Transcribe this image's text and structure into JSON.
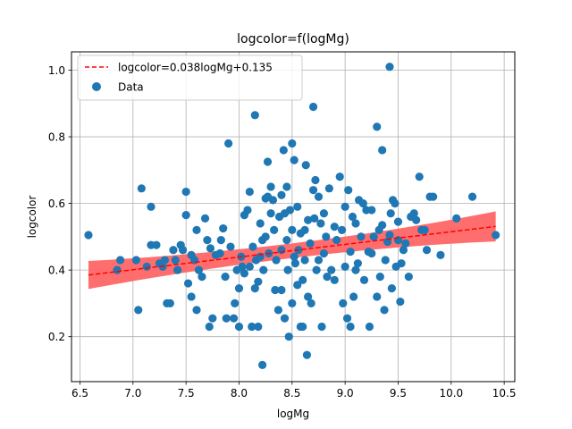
{
  "chart_data": {
    "type": "scatter",
    "title": "logcolor=f(logMg)",
    "xlabel": "logMg",
    "ylabel": "logcolor",
    "xlim": [
      6.42,
      10.6
    ],
    "ylim": [
      0.065,
      1.055
    ],
    "xticks": [
      "6.5",
      "7.0",
      "7.5",
      "8.0",
      "8.5",
      "9.0",
      "9.5",
      "10.0",
      "10.5"
    ],
    "yticks": [
      "0.2",
      "0.4",
      "0.6",
      "0.8",
      "1.0"
    ],
    "grid": true,
    "legend_position": "top-left",
    "fit": {
      "label": "logcolor=0.038logMg+0.135",
      "slope": 0.038,
      "intercept": 0.135,
      "x_range": [
        6.58,
        10.42
      ],
      "band_halfwidth_start": 0.042,
      "band_halfwidth_end": 0.045,
      "band_center_narrow": 0.022,
      "color": "#ff0000",
      "band_color": "#ff6666"
    },
    "series": [
      {
        "name": "Data",
        "color": "#1f77b4",
        "points": [
          [
            6.58,
            0.505
          ],
          [
            6.85,
            0.4
          ],
          [
            6.88,
            0.43
          ],
          [
            7.03,
            0.43
          ],
          [
            7.05,
            0.28
          ],
          [
            7.08,
            0.645
          ],
          [
            7.13,
            0.41
          ],
          [
            7.17,
            0.59
          ],
          [
            7.17,
            0.475
          ],
          [
            7.22,
            0.475
          ],
          [
            7.25,
            0.42
          ],
          [
            7.28,
            0.41
          ],
          [
            7.3,
            0.43
          ],
          [
            7.32,
            0.3
          ],
          [
            7.35,
            0.3
          ],
          [
            7.38,
            0.46
          ],
          [
            7.4,
            0.43
          ],
          [
            7.42,
            0.4
          ],
          [
            7.45,
            0.475
          ],
          [
            7.47,
            0.46
          ],
          [
            7.5,
            0.635
          ],
          [
            7.5,
            0.565
          ],
          [
            7.52,
            0.36
          ],
          [
            7.55,
            0.32
          ],
          [
            7.55,
            0.445
          ],
          [
            7.58,
            0.43
          ],
          [
            7.6,
            0.52
          ],
          [
            7.6,
            0.28
          ],
          [
            7.62,
            0.4
          ],
          [
            7.65,
            0.38
          ],
          [
            7.68,
            0.555
          ],
          [
            7.7,
            0.49
          ],
          [
            7.72,
            0.23
          ],
          [
            7.73,
            0.465
          ],
          [
            7.75,
            0.255
          ],
          [
            7.78,
            0.445
          ],
          [
            7.82,
            0.45
          ],
          [
            7.83,
            0.49
          ],
          [
            7.85,
            0.525
          ],
          [
            7.87,
            0.38
          ],
          [
            7.88,
            0.255
          ],
          [
            7.9,
            0.78
          ],
          [
            7.92,
            0.47
          ],
          [
            7.95,
            0.255
          ],
          [
            7.96,
            0.3
          ],
          [
            7.98,
            0.4
          ],
          [
            8.0,
            0.23
          ],
          [
            8.0,
            0.345
          ],
          [
            8.02,
            0.44
          ],
          [
            8.03,
            0.41
          ],
          [
            8.05,
            0.39
          ],
          [
            8.05,
            0.565
          ],
          [
            8.08,
            0.58
          ],
          [
            8.1,
            0.635
          ],
          [
            8.1,
            0.41
          ],
          [
            8.12,
            0.23
          ],
          [
            8.13,
            0.47
          ],
          [
            8.15,
            0.865
          ],
          [
            8.15,
            0.345
          ],
          [
            8.16,
            0.43
          ],
          [
            8.18,
            0.23
          ],
          [
            8.18,
            0.365
          ],
          [
            8.2,
            0.54
          ],
          [
            8.2,
            0.44
          ],
          [
            8.22,
            0.49
          ],
          [
            8.22,
            0.115
          ],
          [
            8.23,
            0.4
          ],
          [
            8.25,
            0.615
          ],
          [
            8.25,
            0.5
          ],
          [
            8.27,
            0.725
          ],
          [
            8.27,
            0.62
          ],
          [
            8.28,
            0.45
          ],
          [
            8.3,
            0.65
          ],
          [
            8.3,
            0.57
          ],
          [
            8.32,
            0.61
          ],
          [
            8.33,
            0.52
          ],
          [
            8.34,
            0.34
          ],
          [
            8.35,
            0.43
          ],
          [
            8.37,
            0.28
          ],
          [
            8.38,
            0.56
          ],
          [
            8.4,
            0.625
          ],
          [
            8.4,
            0.46
          ],
          [
            8.4,
            0.34
          ],
          [
            8.42,
            0.76
          ],
          [
            8.43,
            0.57
          ],
          [
            8.43,
            0.255
          ],
          [
            8.45,
            0.65
          ],
          [
            8.45,
            0.49
          ],
          [
            8.46,
            0.4
          ],
          [
            8.47,
            0.2
          ],
          [
            8.48,
            0.58
          ],
          [
            8.5,
            0.78
          ],
          [
            8.5,
            0.52
          ],
          [
            8.5,
            0.3
          ],
          [
            8.52,
            0.73
          ],
          [
            8.52,
            0.44
          ],
          [
            8.53,
            0.42
          ],
          [
            8.55,
            0.59
          ],
          [
            8.55,
            0.355
          ],
          [
            8.56,
            0.46
          ],
          [
            8.58,
            0.51
          ],
          [
            8.58,
            0.23
          ],
          [
            8.6,
            0.37
          ],
          [
            8.6,
            0.23
          ],
          [
            8.62,
            0.52
          ],
          [
            8.62,
            0.43
          ],
          [
            8.63,
            0.715
          ],
          [
            8.64,
            0.145
          ],
          [
            8.65,
            0.55
          ],
          [
            8.65,
            0.32
          ],
          [
            8.67,
            0.48
          ],
          [
            8.68,
            0.3
          ],
          [
            8.7,
            0.89
          ],
          [
            8.7,
            0.64
          ],
          [
            8.71,
            0.555
          ],
          [
            8.72,
            0.67
          ],
          [
            8.73,
            0.4
          ],
          [
            8.75,
            0.62
          ],
          [
            8.75,
            0.43
          ],
          [
            8.77,
            0.54
          ],
          [
            8.78,
            0.23
          ],
          [
            8.8,
            0.57
          ],
          [
            8.8,
            0.45
          ],
          [
            8.82,
            0.5
          ],
          [
            8.83,
            0.38
          ],
          [
            8.85,
            0.645
          ],
          [
            8.87,
            0.4
          ],
          [
            8.9,
            0.53
          ],
          [
            8.9,
            0.37
          ],
          [
            8.92,
            0.49
          ],
          [
            8.95,
            0.68
          ],
          [
            8.97,
            0.52
          ],
          [
            8.98,
            0.3
          ],
          [
            9.0,
            0.59
          ],
          [
            9.0,
            0.41
          ],
          [
            9.02,
            0.255
          ],
          [
            9.03,
            0.64
          ],
          [
            9.05,
            0.455
          ],
          [
            9.05,
            0.23
          ],
          [
            9.07,
            0.56
          ],
          [
            9.08,
            0.32
          ],
          [
            9.1,
            0.4
          ],
          [
            9.1,
            0.54
          ],
          [
            9.12,
            0.42
          ],
          [
            9.13,
            0.61
          ],
          [
            9.15,
            0.5
          ],
          [
            9.17,
            0.6
          ],
          [
            9.18,
            0.37
          ],
          [
            9.2,
            0.58
          ],
          [
            9.22,
            0.455
          ],
          [
            9.23,
            0.23
          ],
          [
            9.25,
            0.45
          ],
          [
            9.25,
            0.58
          ],
          [
            9.27,
            0.5
          ],
          [
            9.3,
            0.32
          ],
          [
            9.3,
            0.83
          ],
          [
            9.32,
            0.52
          ],
          [
            9.33,
            0.38
          ],
          [
            9.35,
            0.76
          ],
          [
            9.35,
            0.535
          ],
          [
            9.37,
            0.28
          ],
          [
            9.38,
            0.43
          ],
          [
            9.4,
            0.485
          ],
          [
            9.42,
            1.01
          ],
          [
            9.42,
            0.505
          ],
          [
            9.43,
            0.57
          ],
          [
            9.44,
            0.345
          ],
          [
            9.45,
            0.61
          ],
          [
            9.47,
            0.6
          ],
          [
            9.48,
            0.41
          ],
          [
            9.5,
            0.49
          ],
          [
            9.5,
            0.545
          ],
          [
            9.52,
            0.305
          ],
          [
            9.53,
            0.42
          ],
          [
            9.55,
            0.46
          ],
          [
            9.57,
            0.48
          ],
          [
            9.6,
            0.38
          ],
          [
            9.62,
            0.56
          ],
          [
            9.65,
            0.57
          ],
          [
            9.67,
            0.55
          ],
          [
            9.7,
            0.68
          ],
          [
            9.72,
            0.52
          ],
          [
            9.75,
            0.52
          ],
          [
            9.77,
            0.46
          ],
          [
            9.8,
            0.62
          ],
          [
            9.83,
            0.62
          ],
          [
            9.9,
            0.445
          ],
          [
            10.05,
            0.555
          ],
          [
            10.2,
            0.62
          ],
          [
            10.42,
            0.505
          ]
        ]
      }
    ]
  }
}
